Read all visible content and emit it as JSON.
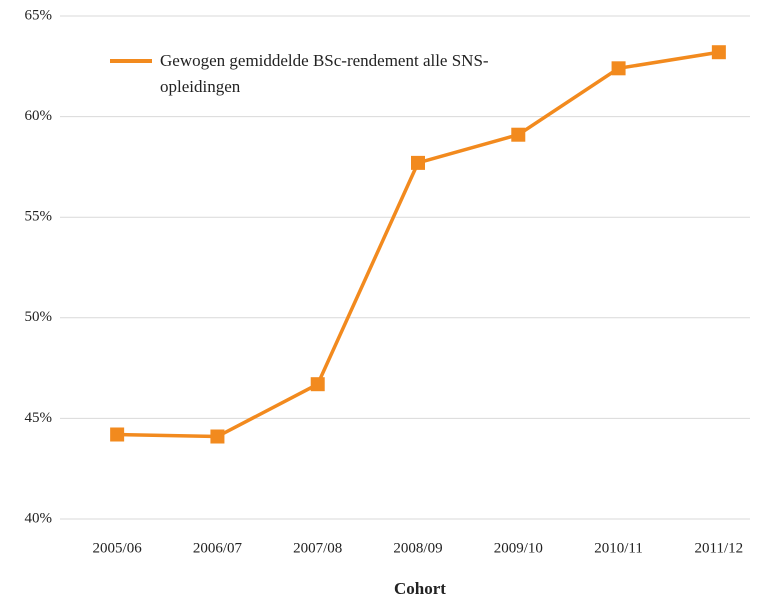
{
  "chart_data": {
    "type": "line",
    "x_label": "Cohort",
    "categories": [
      "2005/06",
      "2006/07",
      "2007/08",
      "2008/09",
      "2009/10",
      "2010/11",
      "2011/12"
    ],
    "series": [
      {
        "name": "Gewogen gemiddelde BSc-rendement alle SNS-opleidingen",
        "color": "#f28a1e",
        "values": [
          44.2,
          44.1,
          46.7,
          57.7,
          59.1,
          62.4,
          63.2
        ]
      }
    ],
    "ylim": [
      40,
      65
    ],
    "yticks": [
      {
        "value": 40,
        "label": "40%"
      },
      {
        "value": 45,
        "label": "45%"
      },
      {
        "value": 50,
        "label": "50%"
      },
      {
        "value": 55,
        "label": "55%"
      },
      {
        "value": 60,
        "label": "60%"
      },
      {
        "value": 65,
        "label": "65%"
      }
    ],
    "grid": true,
    "legend": "upper left"
  }
}
